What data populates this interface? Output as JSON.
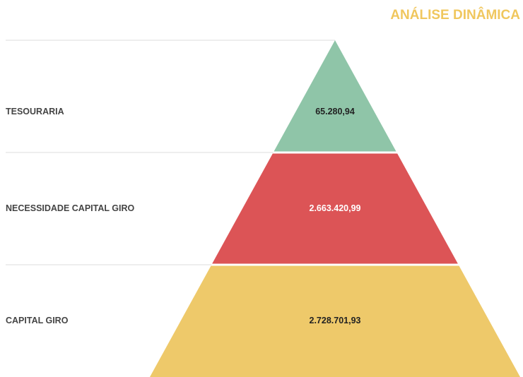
{
  "chart_data": {
    "type": "pyramid",
    "title": "ANÁLISE DINÂMICA",
    "categories": [
      "TESOURARIA",
      "NECESSIDADE CAPITAL GIRO",
      "CAPITAL GIRO"
    ],
    "values": [
      65280.94,
      2663420.99,
      2728701.93
    ],
    "value_labels": [
      "65.280,94",
      "2.663.420,99",
      "2.728.701,93"
    ],
    "colors": [
      "#8fc5a8",
      "#dc5456",
      "#eec96a"
    ],
    "title_color": "#f0c75e"
  }
}
